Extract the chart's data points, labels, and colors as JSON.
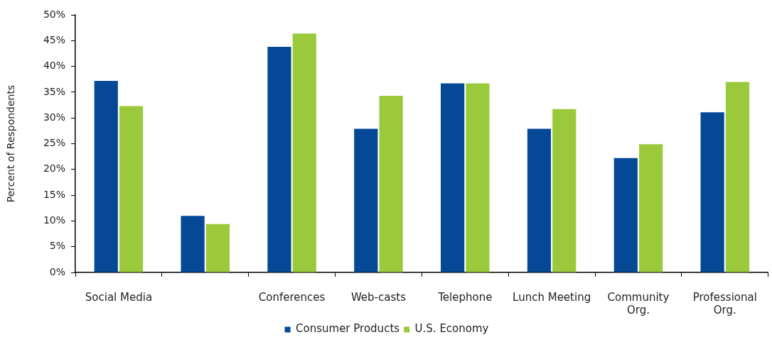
{
  "chart_data": {
    "type": "bar",
    "ylabel": "Percent of Respondents",
    "categories": [
      "Social Media",
      null,
      "Conferences",
      "Web-casts",
      "Telephone",
      "Lunch Meeting",
      "Community Org.",
      "Professional Org."
    ],
    "series": [
      {
        "name": "Consumer Products",
        "color": "#054996",
        "values": [
          37.2,
          11.0,
          43.8,
          27.9,
          36.7,
          27.9,
          22.2,
          31.1
        ]
      },
      {
        "name": "U.S. Economy",
        "color": "#9aca3c",
        "values": [
          32.3,
          9.4,
          46.4,
          34.3,
          36.7,
          31.7,
          24.9,
          37.0
        ]
      }
    ],
    "ylim": [
      0,
      50
    ],
    "yticks": [
      {
        "value": 0,
        "label": "0%"
      },
      {
        "value": 5,
        "label": "5%"
      },
      {
        "value": 10,
        "label": "10%"
      },
      {
        "value": 15,
        "label": "15%"
      },
      {
        "value": 20,
        "label": "20%"
      },
      {
        "value": 25,
        "label": "25%"
      },
      {
        "value": 30,
        "label": "30%"
      },
      {
        "value": 35,
        "label": "35%"
      },
      {
        "value": 40,
        "label": "40%"
      },
      {
        "value": 45,
        "label": "45%"
      },
      {
        "value": 50,
        "label": "50%"
      }
    ],
    "grid": false,
    "legend": "bottom"
  }
}
